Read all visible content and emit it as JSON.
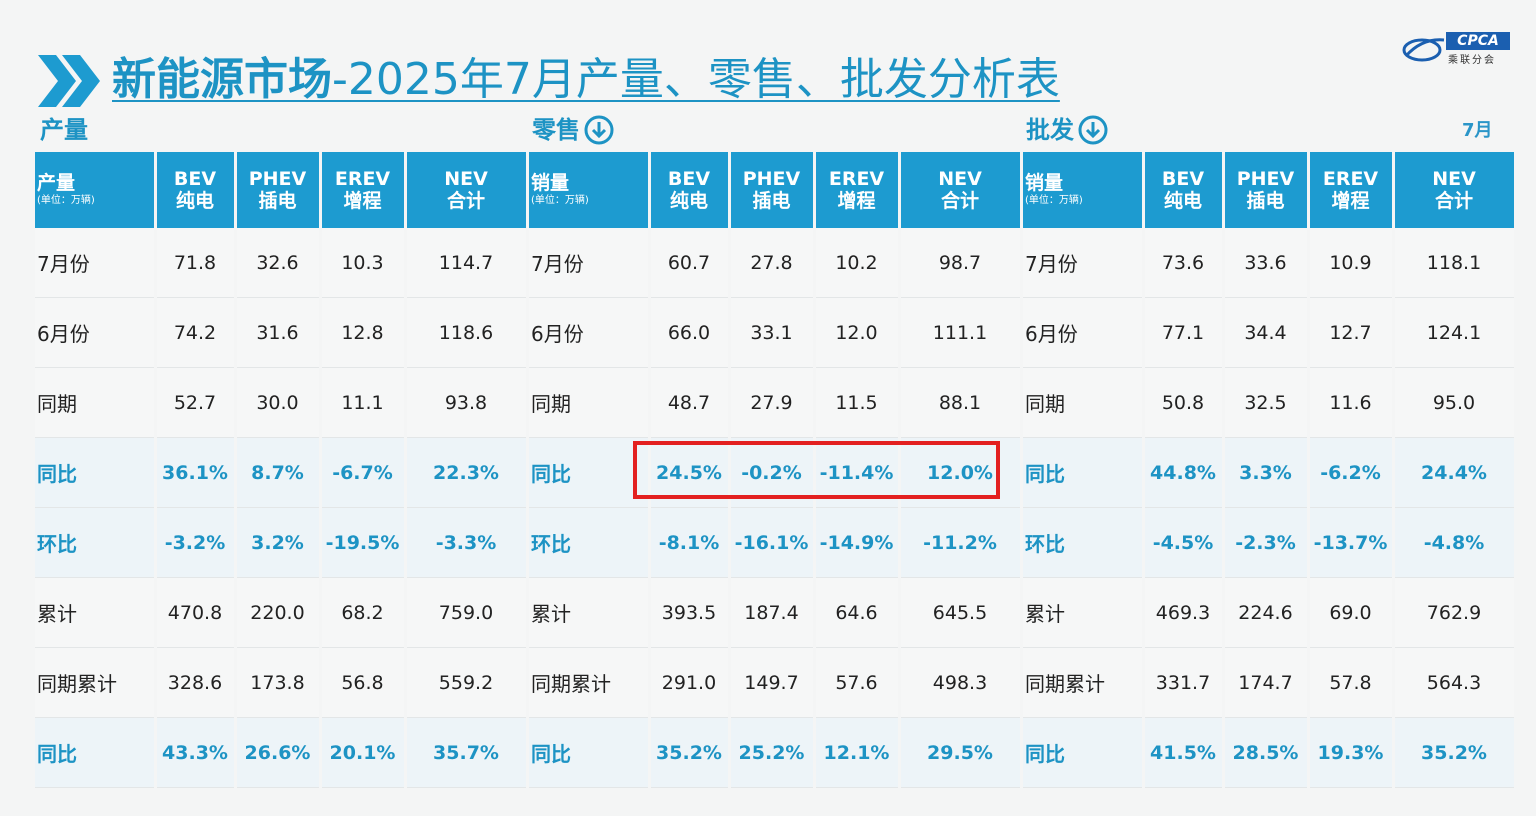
{
  "title": {
    "bold": "新能源市场",
    "rest": "-2025年7月产量、零售、批发分析表"
  },
  "logo": {
    "brand": "CPCA",
    "sub": "乘联分会"
  },
  "month_tag": "7月",
  "colors": {
    "accent": "#1d93c4",
    "header_bg": "#1d9bd0",
    "highlight_box": "#e32020"
  },
  "sections": [
    {
      "label": "产量",
      "header": {
        "title": "产量",
        "unit": "(单位：万辆)",
        "cols": [
          [
            "BEV",
            "纯电"
          ],
          [
            "PHEV",
            "插电"
          ],
          [
            "EREV",
            "增程"
          ],
          [
            "NEV",
            "合计"
          ]
        ]
      },
      "rows": [
        [
          "7月份",
          "71.8",
          "32.6",
          "10.3",
          "114.7"
        ],
        [
          "6月份",
          "74.2",
          "31.6",
          "12.8",
          "118.6"
        ],
        [
          "同期",
          "52.7",
          "30.0",
          "11.1",
          "93.8"
        ],
        [
          "同比",
          "36.1%",
          "8.7%",
          "-6.7%",
          "22.3%"
        ],
        [
          "环比",
          "-3.2%",
          "3.2%",
          "-19.5%",
          "-3.3%"
        ],
        [
          "累计",
          "470.8",
          "220.0",
          "68.2",
          "759.0"
        ],
        [
          "同期累计",
          "328.6",
          "173.8",
          "56.8",
          "559.2"
        ],
        [
          "同比",
          "43.3%",
          "26.6%",
          "20.1%",
          "35.7%"
        ]
      ]
    },
    {
      "label": "零售",
      "header": {
        "title": "销量",
        "unit": "(单位：万辆)",
        "cols": [
          [
            "BEV",
            "纯电"
          ],
          [
            "PHEV",
            "插电"
          ],
          [
            "EREV",
            "增程"
          ],
          [
            "NEV",
            "合计"
          ]
        ]
      },
      "rows": [
        [
          "7月份",
          "60.7",
          "27.8",
          "10.2",
          "98.7"
        ],
        [
          "6月份",
          "66.0",
          "33.1",
          "12.0",
          "111.1"
        ],
        [
          "同期",
          "48.7",
          "27.9",
          "11.5",
          "88.1"
        ],
        [
          "同比",
          "24.5%",
          "-0.2%",
          "-11.4%",
          "12.0%"
        ],
        [
          "环比",
          "-8.1%",
          "-16.1%",
          "-14.9%",
          "-11.2%"
        ],
        [
          "累计",
          "393.5",
          "187.4",
          "64.6",
          "645.5"
        ],
        [
          "同期累计",
          "291.0",
          "149.7",
          "57.6",
          "498.3"
        ],
        [
          "同比",
          "35.2%",
          "25.2%",
          "12.1%",
          "29.5%"
        ]
      ]
    },
    {
      "label": "批发",
      "header": {
        "title": "销量",
        "unit": "(单位：万辆)",
        "cols": [
          [
            "BEV",
            "纯电"
          ],
          [
            "PHEV",
            "插电"
          ],
          [
            "EREV",
            "增程"
          ],
          [
            "NEV",
            "合计"
          ]
        ]
      },
      "rows": [
        [
          "7月份",
          "73.6",
          "33.6",
          "10.9",
          "118.1"
        ],
        [
          "6月份",
          "77.1",
          "34.4",
          "12.7",
          "124.1"
        ],
        [
          "同期",
          "50.8",
          "32.5",
          "11.6",
          "95.0"
        ],
        [
          "同比",
          "44.8%",
          "3.3%",
          "-6.2%",
          "24.4%"
        ],
        [
          "环比",
          "-4.5%",
          "-2.3%",
          "-13.7%",
          "-4.8%"
        ],
        [
          "累计",
          "469.3",
          "224.6",
          "69.0",
          "762.9"
        ],
        [
          "同期累计",
          "331.7",
          "174.7",
          "57.8",
          "564.3"
        ],
        [
          "同比",
          "41.5%",
          "28.5%",
          "19.3%",
          "35.2%"
        ]
      ]
    }
  ]
}
